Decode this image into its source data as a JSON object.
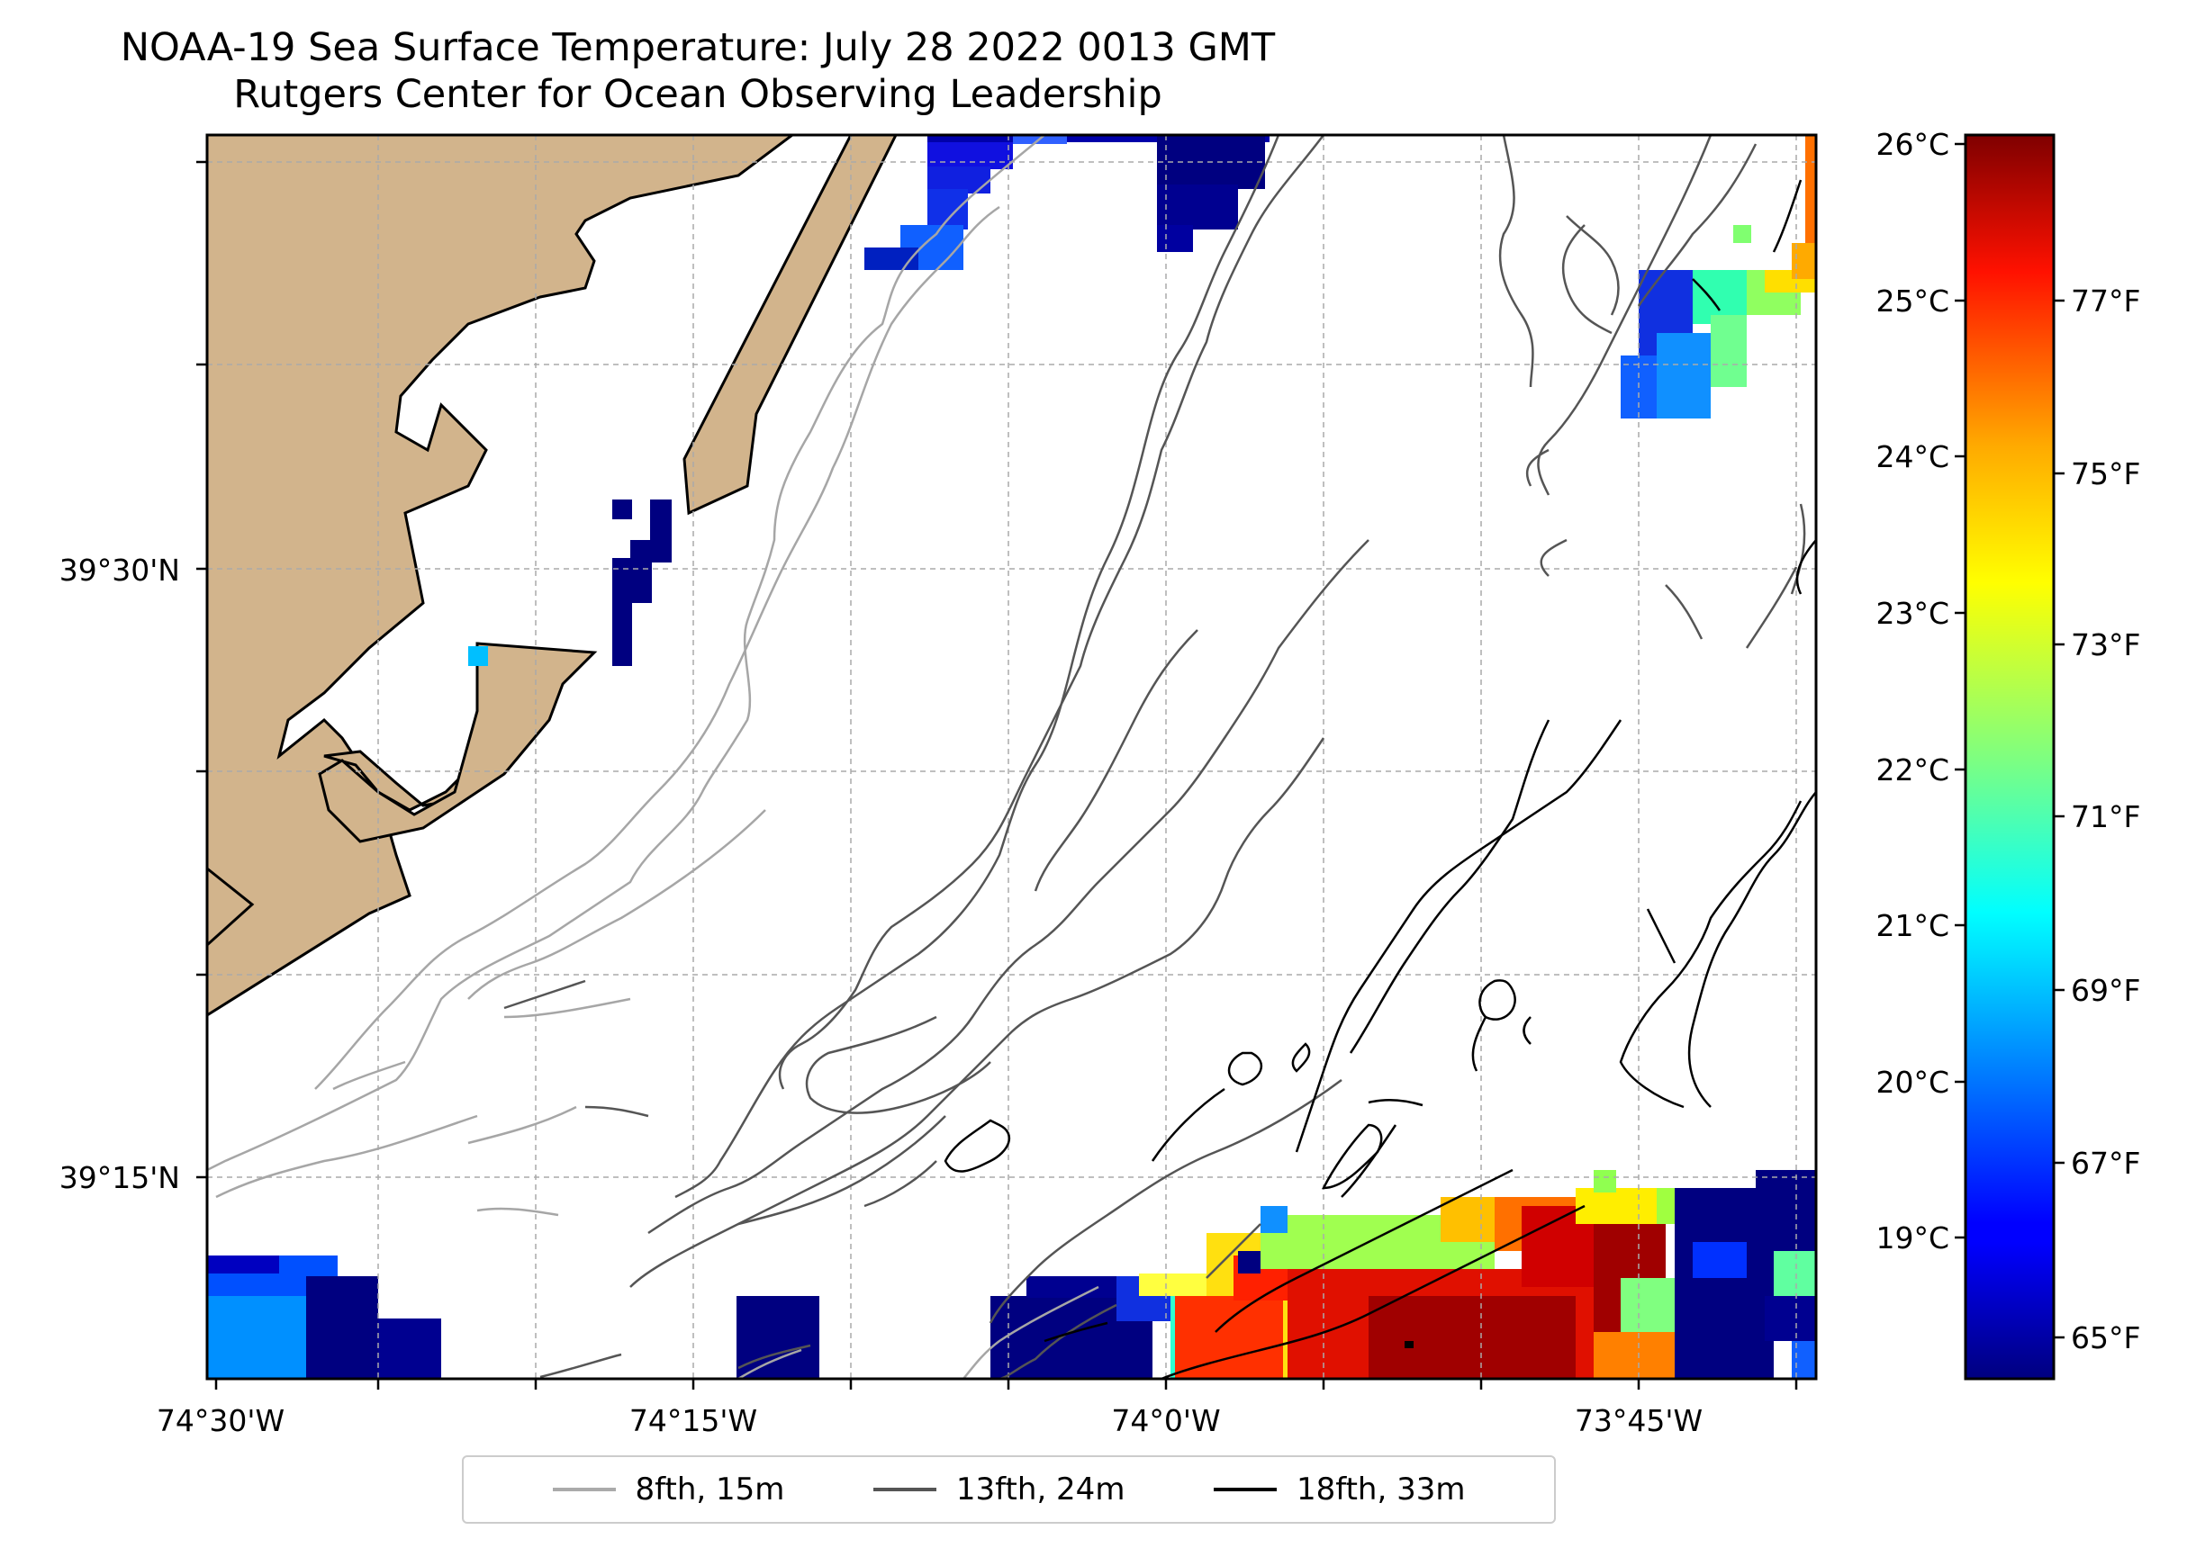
{
  "title": {
    "line1": "NOAA-19 Sea Surface Temperature: July 28 2022 0013 GMT",
    "line2": "Rutgers Center for Ocean Observing Leadership"
  },
  "map": {
    "lon_ticks": [
      "74°30'W",
      "74°15'W",
      "74°0'W",
      "73°45'W"
    ],
    "lat_ticks": [
      "39°30'N",
      "39°15'N"
    ],
    "land_color": "#d2b48c",
    "grid": true
  },
  "colorbar": {
    "colormap": "jet",
    "celsius_ticks": [
      "26°C",
      "25°C",
      "24°C",
      "23°C",
      "22°C",
      "21°C",
      "20°C",
      "19°C"
    ],
    "fahrenheit_ticks": [
      "77°F",
      "75°F",
      "73°F",
      "71°F",
      "69°F",
      "67°F",
      "65°F"
    ]
  },
  "legend": {
    "items": [
      {
        "label": "8fth, 15m",
        "color": "#aaaaaa"
      },
      {
        "label": "13fth, 24m",
        "color": "#555555"
      },
      {
        "label": "18fth, 33m",
        "color": "#000000"
      }
    ]
  }
}
